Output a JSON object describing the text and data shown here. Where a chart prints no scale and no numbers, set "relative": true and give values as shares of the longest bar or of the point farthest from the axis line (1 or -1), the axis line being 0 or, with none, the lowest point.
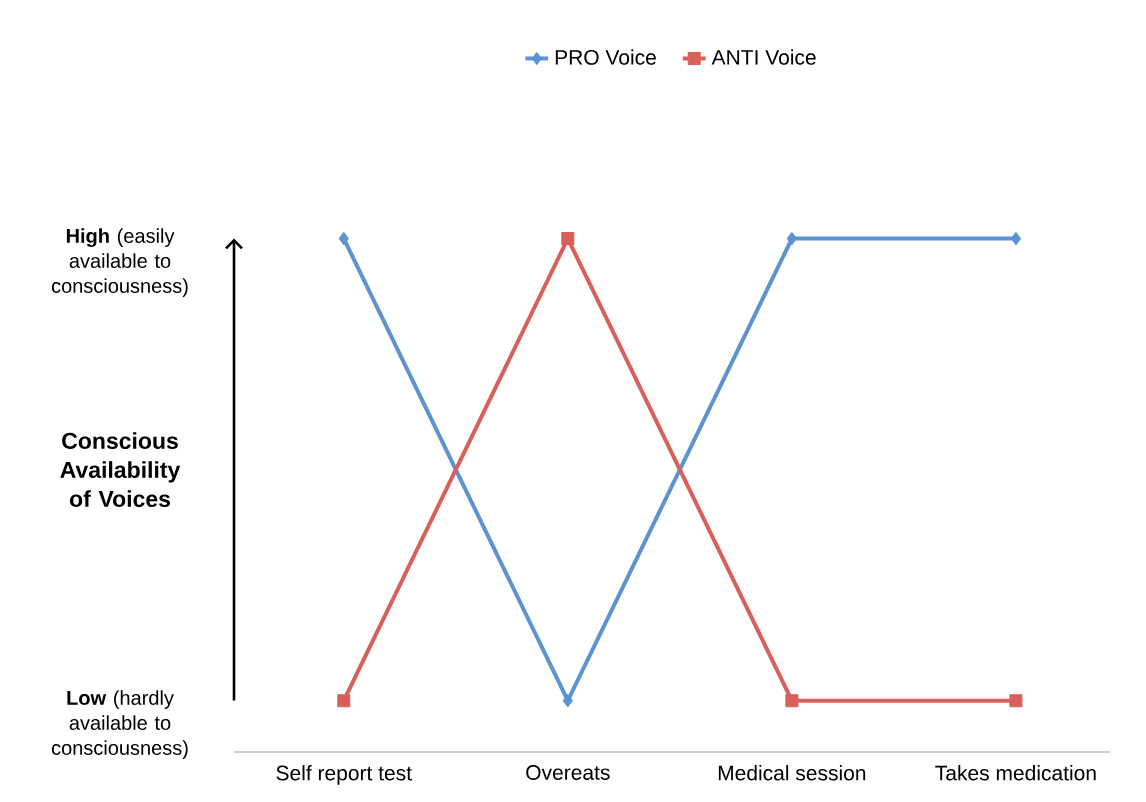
{
  "chart_data": {
    "type": "line",
    "ylabel": "Conscious Availability of Voices",
    "relative": true,
    "categories": [
      "Self report test",
      "Overeats",
      "Medical session",
      "Takes medication"
    ],
    "series": [
      {
        "name": "PRO Voice",
        "color": "#5b93d3",
        "marker": "diamond",
        "values": [
          1,
          0.1,
          1,
          1
        ]
      },
      {
        "name": "ANTI Voice",
        "color": "#d9605a",
        "marker": "square",
        "values": [
          0.1,
          1,
          0.1,
          0.1
        ]
      }
    ],
    "annotations": [
      "**High** (easily available to consciousness)",
      "**Low** (hardly available to consciousness)"
    ],
    "legend": "top",
    "grid": false
  }
}
